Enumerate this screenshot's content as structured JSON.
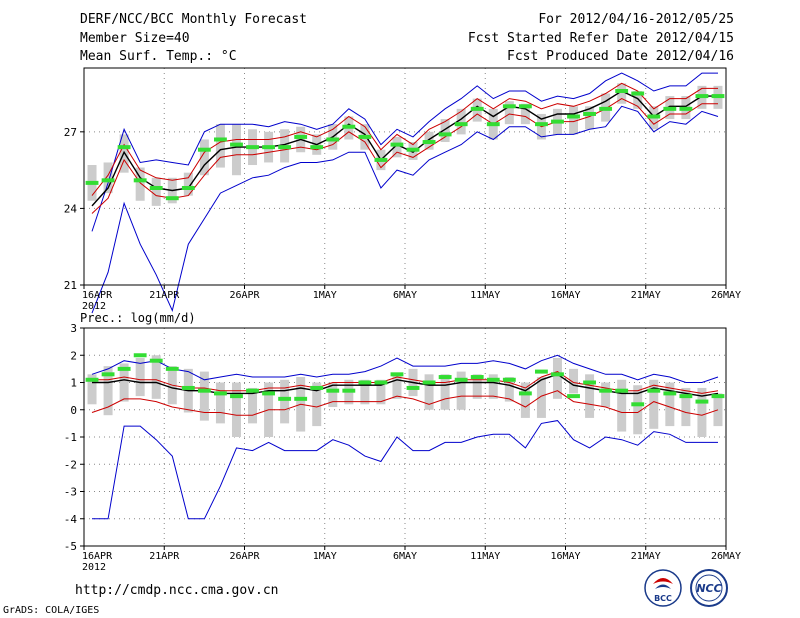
{
  "header": {
    "title": "DERF/NCC/BCC Monthly Forecast",
    "member_size": "Member Size=40",
    "variable1": "Mean Surf. Temp.: °C",
    "period": "For 2012/04/16-2012/05/25",
    "started": "Fcst Started Refer Date 2012/04/15",
    "produced": "Fcst Produced Date 2012/04/16"
  },
  "footer": {
    "url": "http://cmdp.ncc.cma.gov.cn",
    "grads": "GrADS: COLA/IGES",
    "logo_bcc": "BCC",
    "logo_ncc": "NCC"
  },
  "colors": {
    "envelope": "#0000cc",
    "mean": "#000000",
    "spread": "#cc0000",
    "observed": "#33dd33",
    "box": "#cccccc",
    "grid": "#888888"
  },
  "chart_data": [
    {
      "type": "line",
      "title": "Mean Surf. Temp.: °C",
      "ylim": [
        21,
        29.5
      ],
      "yticks": [
        21,
        24,
        27
      ],
      "xlim": [
        0,
        40
      ],
      "xticks": [
        {
          "x": 0,
          "label": "16APR",
          "sub": "2012"
        },
        {
          "x": 5,
          "label": "21APR"
        },
        {
          "x": 10,
          "label": "26APR"
        },
        {
          "x": 15,
          "label": "1MAY"
        },
        {
          "x": 20,
          "label": "6MAY"
        },
        {
          "x": 25,
          "label": "11MAY"
        },
        {
          "x": 30,
          "label": "16MAY"
        },
        {
          "x": 35,
          "label": "21MAY"
        },
        {
          "x": 40,
          "label": "26MAY"
        }
      ],
      "box_low": [
        24.3,
        24.6,
        25.4,
        24.3,
        24.1,
        24.2,
        24.5,
        25.3,
        25.6,
        25.3,
        25.7,
        25.8,
        25.8,
        26.2,
        26.1,
        26.3,
        26.7,
        26.3,
        25.5,
        26.0,
        25.9,
        26.3,
        26.6,
        26.9,
        27.4,
        26.7,
        27.3,
        27.3,
        26.7,
        26.9,
        26.9,
        27.1,
        27.4,
        28.1,
        27.9,
        27.1,
        27.5,
        27.5,
        27.9,
        27.9
      ],
      "box_high": [
        25.7,
        25.8,
        26.9,
        25.6,
        25.2,
        25.2,
        25.4,
        26.7,
        27.3,
        27.3,
        27.1,
        27.0,
        27.1,
        27.2,
        26.9,
        27.3,
        27.6,
        27.3,
        26.3,
        26.8,
        26.6,
        27.0,
        27.5,
        27.9,
        28.3,
        27.9,
        28.2,
        28.1,
        27.7,
        27.9,
        28.0,
        28.0,
        28.5,
        28.9,
        28.6,
        28.0,
        28.4,
        28.4,
        28.8,
        28.8
      ],
      "series": [
        {
          "name": "ensemble max",
          "color": "#0000cc",
          "values": [
            23.1,
            25.0,
            27.1,
            25.8,
            25.9,
            25.8,
            25.7,
            27.0,
            27.3,
            27.3,
            27.3,
            27.2,
            27.4,
            27.3,
            27.1,
            27.3,
            27.9,
            27.5,
            26.5,
            27.1,
            26.8,
            27.4,
            27.9,
            28.3,
            28.8,
            28.3,
            28.6,
            28.6,
            28.2,
            28.4,
            28.3,
            28.5,
            29.0,
            29.3,
            29.0,
            28.6,
            28.8,
            28.8,
            29.3,
            29.3
          ]
        },
        {
          "name": "ensemble min",
          "color": "#0000cc",
          "values": [
            19.9,
            21.5,
            24.2,
            22.6,
            21.4,
            20.0,
            22.6,
            23.6,
            24.6,
            24.9,
            25.2,
            25.3,
            25.6,
            25.8,
            25.8,
            25.9,
            26.2,
            26.2,
            24.8,
            25.5,
            25.3,
            25.9,
            26.2,
            26.5,
            27.0,
            26.7,
            27.2,
            27.2,
            26.8,
            26.9,
            26.9,
            27.1,
            27.2,
            28.0,
            27.8,
            27.0,
            27.4,
            27.3,
            27.8,
            27.6
          ]
        },
        {
          "name": "ensemble mean",
          "color": "#000000",
          "values": [
            24.1,
            24.8,
            26.2,
            25.2,
            24.8,
            24.7,
            24.8,
            25.7,
            26.3,
            26.4,
            26.4,
            26.4,
            26.5,
            26.7,
            26.5,
            26.8,
            27.3,
            26.9,
            25.9,
            26.5,
            26.2,
            26.7,
            27.1,
            27.5,
            28.0,
            27.6,
            28.0,
            27.9,
            27.5,
            27.7,
            27.7,
            27.9,
            28.2,
            28.6,
            28.3,
            27.6,
            28.0,
            28.0,
            28.4,
            28.4
          ]
        },
        {
          "name": "ensemble mean + sd",
          "color": "#cc0000",
          "values": [
            24.5,
            25.3,
            26.5,
            25.5,
            25.2,
            25.1,
            25.2,
            26.2,
            26.6,
            26.7,
            26.7,
            26.7,
            26.8,
            27.0,
            26.8,
            27.1,
            27.6,
            27.2,
            26.3,
            26.9,
            26.5,
            27.1,
            27.4,
            27.8,
            28.3,
            27.9,
            28.3,
            28.2,
            27.9,
            28.1,
            28.0,
            28.2,
            28.5,
            28.9,
            28.6,
            27.9,
            28.3,
            28.3,
            28.7,
            28.7
          ]
        },
        {
          "name": "ensemble mean - sd",
          "color": "#cc0000",
          "values": [
            23.8,
            24.4,
            25.9,
            25.0,
            24.5,
            24.4,
            24.5,
            25.3,
            26.0,
            26.1,
            26.1,
            26.2,
            26.3,
            26.4,
            26.3,
            26.5,
            27.0,
            26.6,
            25.6,
            26.2,
            26.0,
            26.4,
            26.8,
            27.2,
            27.7,
            27.3,
            27.7,
            27.6,
            27.2,
            27.4,
            27.4,
            27.6,
            27.9,
            28.3,
            28.0,
            27.3,
            27.7,
            27.7,
            28.1,
            28.1
          ]
        }
      ],
      "observed": [
        25.0,
        25.1,
        26.4,
        25.1,
        24.8,
        24.4,
        24.8,
        26.3,
        26.7,
        26.5,
        26.4,
        26.4,
        26.4,
        26.8,
        26.4,
        26.7,
        27.2,
        26.8,
        25.9,
        26.5,
        26.3,
        26.6,
        26.9,
        27.3,
        27.9,
        27.3,
        28.0,
        28.0,
        27.3,
        27.4,
        27.6,
        27.7,
        27.9,
        28.6,
        28.5,
        27.6,
        27.9,
        27.9,
        28.4,
        28.4
      ]
    },
    {
      "type": "line",
      "title": "Prec.: log(mm/d)",
      "ylim": [
        -5,
        3
      ],
      "yticks": [
        -5,
        -4,
        -3,
        -2,
        -1,
        0,
        1,
        2,
        3
      ],
      "xlim": [
        0,
        40
      ],
      "xticks": [
        {
          "x": 0,
          "label": "16APR",
          "sub": "2012"
        },
        {
          "x": 5,
          "label": "21APR"
        },
        {
          "x": 10,
          "label": "26APR"
        },
        {
          "x": 15,
          "label": "1MAY"
        },
        {
          "x": 20,
          "label": "6MAY"
        },
        {
          "x": 25,
          "label": "11MAY"
        },
        {
          "x": 30,
          "label": "16MAY"
        },
        {
          "x": 35,
          "label": "21MAY"
        },
        {
          "x": 40,
          "label": "26MAY"
        }
      ],
      "box_low": [
        0.2,
        -0.2,
        0.3,
        0.5,
        0.4,
        0.2,
        -0.1,
        -0.4,
        -0.5,
        -1.0,
        -0.5,
        -1.0,
        -0.5,
        -0.8,
        -0.6,
        0.1,
        0.2,
        0.2,
        0.2,
        0.4,
        0.5,
        0.0,
        0.0,
        0.0,
        0.4,
        0.4,
        0.3,
        -0.3,
        -0.3,
        0.4,
        0.6,
        -0.3,
        0.1,
        -0.8,
        -0.9,
        -0.7,
        -0.6,
        -0.6,
        -1.0,
        -0.6
      ],
      "box_high": [
        1.3,
        1.6,
        1.7,
        1.9,
        2.0,
        1.6,
        1.5,
        1.4,
        1.0,
        1.0,
        0.8,
        1.0,
        1.1,
        1.2,
        1.0,
        1.0,
        1.1,
        1.1,
        1.1,
        1.3,
        1.5,
        1.3,
        1.3,
        1.4,
        1.3,
        1.3,
        1.2,
        1.0,
        1.2,
        1.9,
        1.5,
        1.3,
        1.0,
        1.1,
        0.9,
        1.1,
        1.0,
        0.8,
        0.8,
        0.6
      ],
      "series": [
        {
          "name": "ensemble max",
          "color": "#0000cc",
          "values": [
            1.3,
            1.5,
            1.8,
            1.7,
            1.8,
            1.5,
            1.4,
            1.1,
            1.2,
            1.3,
            1.2,
            1.2,
            1.2,
            1.3,
            1.2,
            1.3,
            1.3,
            1.4,
            1.6,
            1.9,
            1.6,
            1.6,
            1.6,
            1.7,
            1.7,
            1.8,
            1.7,
            1.5,
            1.8,
            2.0,
            1.7,
            1.5,
            1.3,
            1.3,
            1.1,
            1.3,
            1.2,
            1.0,
            1.0,
            1.2
          ]
        },
        {
          "name": "ensemble min",
          "color": "#0000cc",
          "values": [
            -4.0,
            -4.0,
            -0.6,
            -0.6,
            -1.1,
            -1.7,
            -4.0,
            -4.0,
            -2.8,
            -1.4,
            -1.5,
            -1.2,
            -1.5,
            -1.5,
            -1.5,
            -1.1,
            -1.3,
            -1.7,
            -1.9,
            -1.0,
            -1.5,
            -1.5,
            -1.2,
            -1.2,
            -1.0,
            -0.9,
            -0.9,
            -1.4,
            -0.5,
            -0.4,
            -1.1,
            -1.4,
            -1.0,
            -1.1,
            -1.3,
            -0.8,
            -0.9,
            -1.2,
            -1.2,
            -1.2
          ]
        },
        {
          "name": "ensemble mean",
          "color": "#000000",
          "values": [
            1.0,
            1.0,
            1.1,
            1.0,
            1.0,
            0.8,
            0.7,
            0.7,
            0.6,
            0.6,
            0.6,
            0.7,
            0.7,
            0.8,
            0.7,
            0.9,
            0.9,
            0.9,
            0.9,
            1.1,
            1.0,
            0.9,
            0.9,
            1.0,
            1.0,
            1.0,
            0.9,
            0.7,
            1.1,
            1.3,
            0.9,
            0.8,
            0.7,
            0.6,
            0.6,
            0.8,
            0.7,
            0.6,
            0.5,
            0.6
          ]
        },
        {
          "name": "ensemble mean + sd",
          "color": "#cc0000",
          "values": [
            1.1,
            1.1,
            1.2,
            1.1,
            1.1,
            0.9,
            0.8,
            0.8,
            0.7,
            0.7,
            0.7,
            0.8,
            0.8,
            0.9,
            0.8,
            1.0,
            1.0,
            1.0,
            1.0,
            1.2,
            1.1,
            1.0,
            1.0,
            1.1,
            1.1,
            1.1,
            1.0,
            0.8,
            1.2,
            1.4,
            1.0,
            0.9,
            0.8,
            0.7,
            0.7,
            0.9,
            0.8,
            0.7,
            0.6,
            0.7
          ]
        },
        {
          "name": "ensemble mean - sd",
          "color": "#cc0000",
          "values": [
            -0.1,
            0.1,
            0.4,
            0.4,
            0.3,
            0.1,
            0.0,
            -0.1,
            -0.1,
            -0.2,
            -0.2,
            0.0,
            0.0,
            0.2,
            0.1,
            0.3,
            0.3,
            0.3,
            0.3,
            0.5,
            0.4,
            0.2,
            0.4,
            0.5,
            0.5,
            0.5,
            0.4,
            0.1,
            0.5,
            0.7,
            0.3,
            0.2,
            0.1,
            -0.1,
            -0.1,
            0.3,
            0.1,
            -0.1,
            -0.2,
            0.0
          ]
        }
      ],
      "observed": [
        1.1,
        1.3,
        1.5,
        2.0,
        1.8,
        1.5,
        0.8,
        0.7,
        0.6,
        0.5,
        0.7,
        0.6,
        0.4,
        0.4,
        0.8,
        0.7,
        0.7,
        1.0,
        1.0,
        1.3,
        0.8,
        1.0,
        1.2,
        1.1,
        1.2,
        1.1,
        1.1,
        0.6,
        1.4,
        1.3,
        0.5,
        1.0,
        0.7,
        0.7,
        0.2,
        0.7,
        0.6,
        0.5,
        0.3,
        0.5
      ]
    }
  ]
}
